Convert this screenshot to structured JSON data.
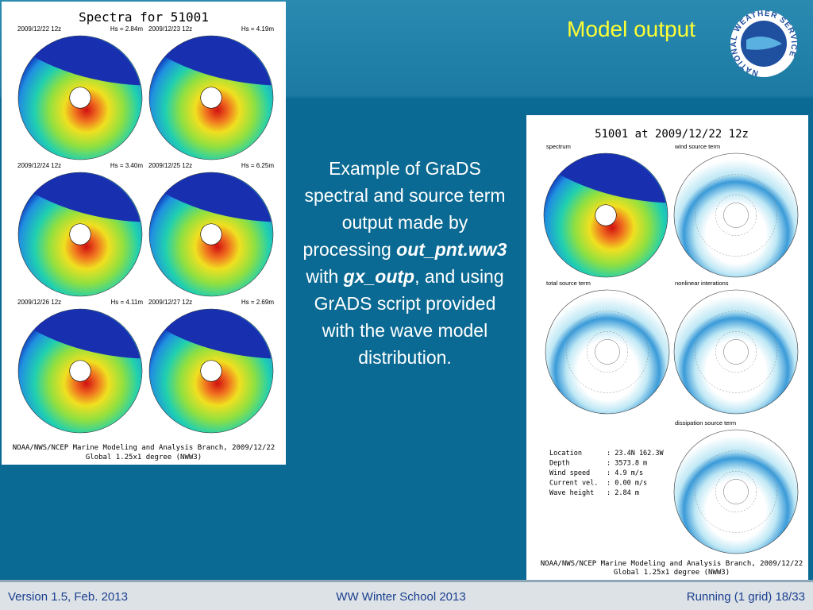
{
  "slide": {
    "title": "Model output",
    "logo": "NATIONAL WEATHER SERVICE",
    "body": [
      {
        "text": "Example of GraDS spectral and source term output made by processing ",
        "style": "plain"
      },
      {
        "text": "out_pnt.ww3",
        "style": "bi"
      },
      {
        "text": " with ",
        "style": "plain"
      },
      {
        "text": "gx_outp",
        "style": "bi"
      },
      {
        "text": ", and using GrADS script provided with the wave model distribution.",
        "style": "plain"
      }
    ],
    "left_figure": {
      "title": "Spectra for 51001",
      "panels": [
        {
          "date": "2009/12/22 12z",
          "hs": "Hs =  2.84m"
        },
        {
          "date": "2009/12/23 12z",
          "hs": "Hs =  4.19m"
        },
        {
          "date": "2009/12/24 12z",
          "hs": "Hs =  3.40m"
        },
        {
          "date": "2009/12/25 12z",
          "hs": "Hs =  6.25m"
        },
        {
          "date": "2009/12/26 12z",
          "hs": "Hs =  4.11m"
        },
        {
          "date": "2009/12/27 12z",
          "hs": "Hs =  2.69m"
        }
      ],
      "credit": [
        "NOAA/NWS/NCEP Marine Modeling and Analysis Branch, 2009/12/22",
        "Global 1.25x1 degree (NWW3)"
      ]
    },
    "right_figure": {
      "title": "51001 at 2009/12/22 12z",
      "panels": [
        "spectrum",
        "wind source term",
        "total source term",
        "nonlinear interations",
        "dissipation source term"
      ],
      "info": [
        [
          "Location",
          ": 23.4N 162.3W"
        ],
        [
          "Depth",
          ":   3573.8 m"
        ],
        [
          "Wind speed",
          ":    4.9 m/s"
        ],
        [
          "Current vel.",
          ":   0.00 m/s"
        ],
        [
          "Wave height",
          ":    2.84 m"
        ]
      ],
      "credit": [
        "NOAA/NWS/NCEP Marine Modeling and Analysis Branch, 2009/12/22",
        "Global 1.25x1 degree (NWW3)"
      ]
    },
    "footer": {
      "left": "Version 1.5, Feb. 2013",
      "center": "WW Winter School 2013",
      "right": "Running (1 grid) 18/33"
    }
  }
}
